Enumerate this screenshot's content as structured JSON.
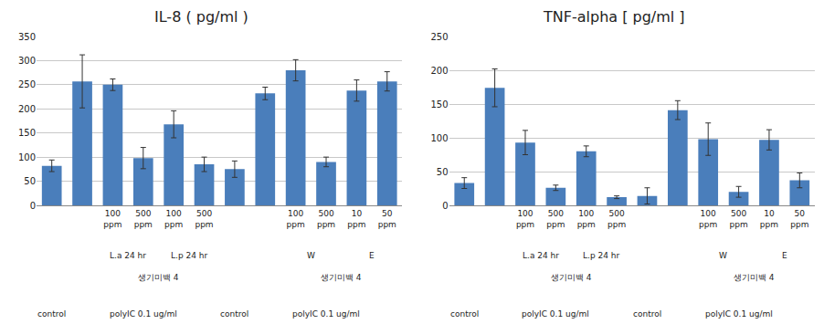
{
  "chart_data": [
    {
      "type": "bar",
      "title": "IL-8 ( pg/ml )",
      "categories": [
        null,
        null,
        "100 ppm",
        "500 ppm",
        "100 ppm",
        "500 ppm",
        null,
        null,
        "100 ppm",
        "500 ppm",
        "10 ppm",
        "50 ppm"
      ],
      "values": [
        82,
        257,
        250,
        98,
        168,
        85,
        75,
        232,
        280,
        90,
        238,
        257
      ],
      "errors": [
        12,
        55,
        12,
        22,
        28,
        15,
        17,
        13,
        22,
        10,
        22,
        20
      ],
      "color": "#4a7ebb",
      "ylim": [
        0,
        350
      ],
      "yticks": [
        0,
        50,
        100,
        150,
        200,
        250,
        300,
        350
      ],
      "grid": true,
      "category_groups": [
        [
          {
            "label": "L.a 24 hr",
            "from": 2,
            "to": 3
          },
          {
            "label": "L.p 24 hr",
            "from": 4,
            "to": 5
          },
          {
            "label": "W",
            "from": 8,
            "to": 9
          },
          {
            "label": "E",
            "from": 10,
            "to": 11
          }
        ],
        [
          {
            "label": "생기미백 4",
            "from": 2,
            "to": 5
          },
          {
            "label": "생기미백 4",
            "from": 8,
            "to": 11
          }
        ],
        [
          {
            "label": "control",
            "from": 0,
            "to": 0
          },
          {
            "label": "polyIC 0.1 ug/ml",
            "from": 1,
            "to": 5
          },
          {
            "label": "control",
            "from": 6,
            "to": 6
          },
          {
            "label": "polyIC 0.1 ug/ml",
            "from": 7,
            "to": 11
          }
        ]
      ]
    },
    {
      "type": "bar",
      "title": "TNF-alpha [ pg/ml ]",
      "categories": [
        null,
        null,
        "100 ppm",
        "500 ppm",
        "100 ppm",
        "500 ppm",
        null,
        null,
        "100 ppm",
        "500 ppm",
        "10 ppm",
        "50 ppm"
      ],
      "values": [
        33,
        174,
        93,
        26,
        80,
        12,
        14,
        141,
        98,
        20,
        97,
        37
      ],
      "errors": [
        8,
        28,
        18,
        4,
        8,
        2,
        12,
        14,
        24,
        8,
        15,
        11
      ],
      "color": "#4a7ebb",
      "ylim": [
        0,
        250
      ],
      "yticks": [
        0,
        50,
        100,
        150,
        200,
        250
      ],
      "grid": true,
      "category_groups": [
        [
          {
            "label": "L.a 24 hr",
            "from": 2,
            "to": 3
          },
          {
            "label": "L.p 24 hr",
            "from": 4,
            "to": 5
          },
          {
            "label": "W",
            "from": 8,
            "to": 9
          },
          {
            "label": "E",
            "from": 10,
            "to": 11
          }
        ],
        [
          {
            "label": "생기미백 4",
            "from": 2,
            "to": 5
          },
          {
            "label": "생기미백 4",
            "from": 8,
            "to": 11
          }
        ],
        [
          {
            "label": "control",
            "from": 0,
            "to": 0
          },
          {
            "label": "polyIC 0.1 ug/ml",
            "from": 1,
            "to": 5
          },
          {
            "label": "control",
            "from": 6,
            "to": 6
          },
          {
            "label": "polyIC 0.1 ug/ml",
            "from": 7,
            "to": 11
          }
        ]
      ]
    }
  ]
}
